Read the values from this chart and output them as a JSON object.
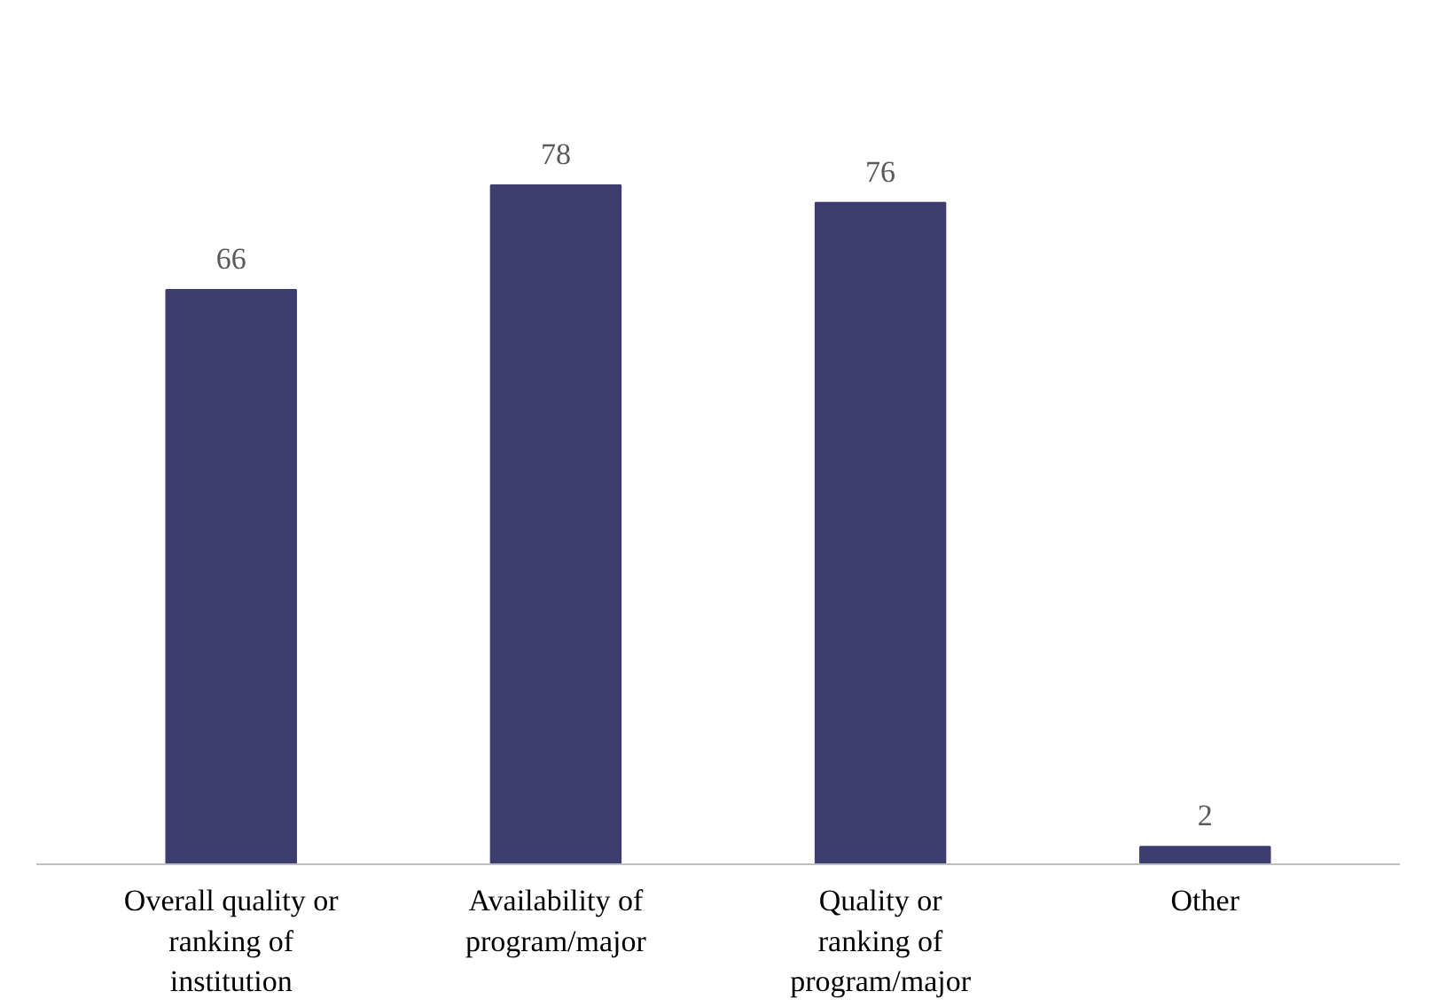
{
  "chart_data": {
    "type": "bar",
    "categories": [
      "Overall quality or\nranking of\ninstitution",
      "Availability of\nprogram/major",
      "Quality or\nranking of\nprogram/major",
      "Other"
    ],
    "values": [
      66,
      78,
      76,
      2
    ],
    "color": "#3d3d70",
    "data_labels": true
  }
}
